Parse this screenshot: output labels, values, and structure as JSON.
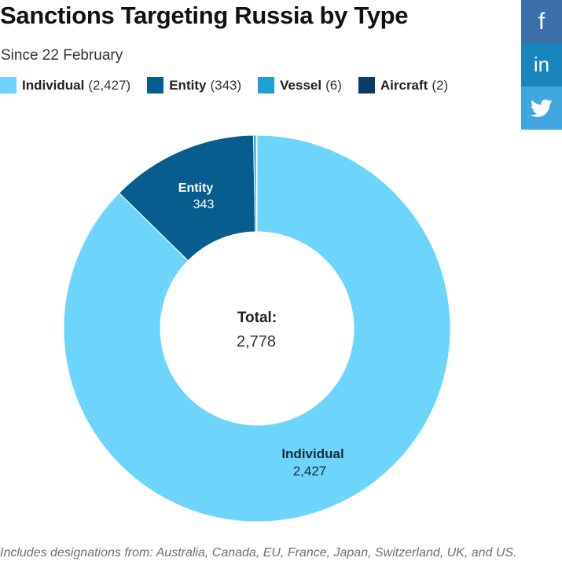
{
  "title": "Sanctions Targeting Russia by Type",
  "subtitle": "Since 22 February",
  "share": [
    {
      "name": "facebook",
      "glyph": "f",
      "color": "#3c6ea8"
    },
    {
      "name": "linkedin",
      "glyph": "in",
      "color": "#1a84bc"
    },
    {
      "name": "twitter",
      "glyph": "twitter-bird-icon",
      "color": "#3fa6df"
    }
  ],
  "chart_data": {
    "type": "pie",
    "donut": true,
    "title": "Sanctions Targeting Russia by Type",
    "subtitle": "Since 22 February",
    "legend_position": "top-left",
    "slices": [
      {
        "name": "Individual",
        "value": 2427,
        "legend_value": "(2,427)",
        "value_label": "2,427",
        "color": "#6dd5fb"
      },
      {
        "name": "Entity",
        "value": 343,
        "legend_value": "(343)",
        "value_label": "343",
        "color": "#075d8d"
      },
      {
        "name": "Vessel",
        "value": 6,
        "legend_value": "(6)",
        "value_label": "6",
        "color": "#1f9fd3"
      },
      {
        "name": "Aircraft",
        "value": 2,
        "legend_value": "(2)",
        "value_label": "2",
        "color": "#0a3a66"
      }
    ],
    "center_label": "Total:",
    "center_value": "2,778"
  },
  "footnote": "Includes designations from: Australia, Canada, EU, France, Japan, Switzerland, UK, and US."
}
